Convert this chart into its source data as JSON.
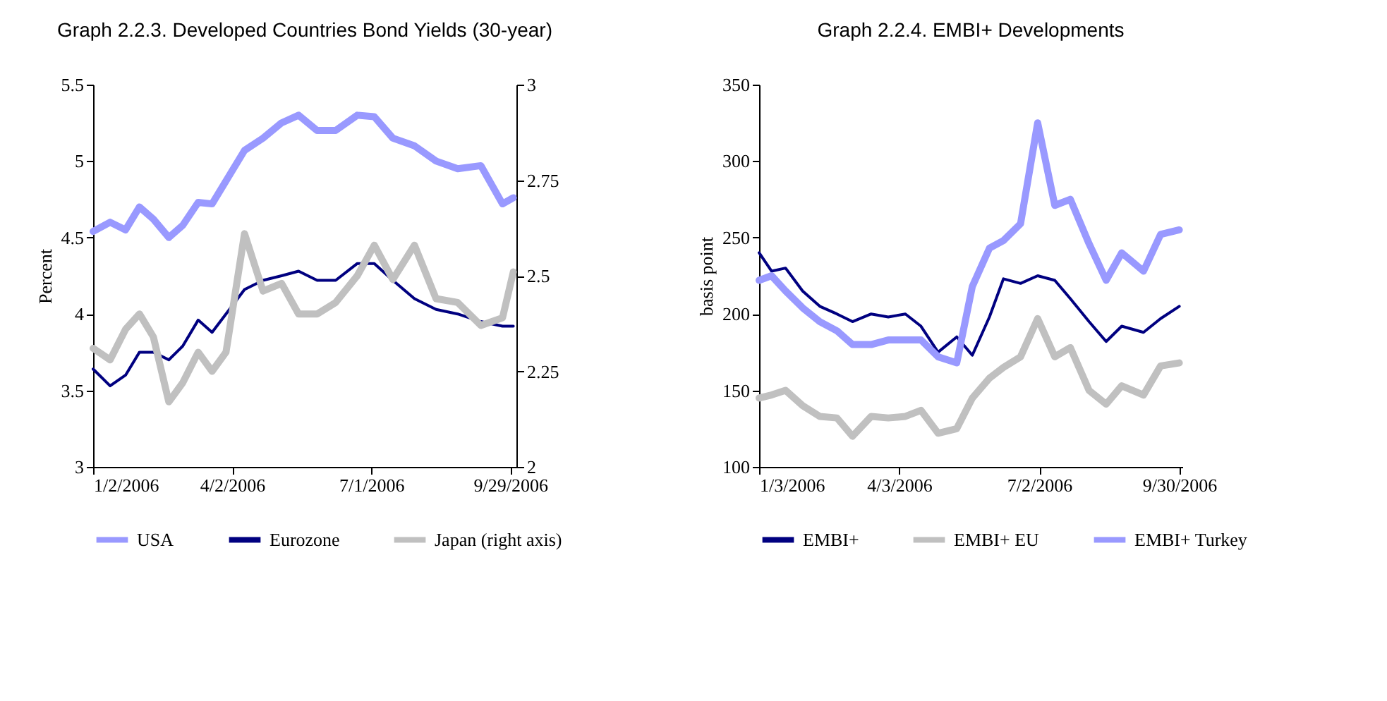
{
  "chart_data": [
    {
      "type": "line",
      "title": "Graph 2.2.3. Developed Countries Bond Yields (30-year)",
      "ylabel": "Percent",
      "legend": "bottom",
      "x": [
        "2006-01-02",
        "2006-01-13",
        "2006-01-23",
        "2006-02-01",
        "2006-02-10",
        "2006-02-20",
        "2006-03-01",
        "2006-03-11",
        "2006-03-20",
        "2006-03-29",
        "2006-04-10",
        "2006-04-22",
        "2006-05-04",
        "2006-05-15",
        "2006-05-27",
        "2006-06-08",
        "2006-06-22",
        "2006-07-03",
        "2006-07-15",
        "2006-07-29",
        "2006-08-12",
        "2006-08-26",
        "2006-09-10",
        "2006-09-24",
        "2006-10-01"
      ],
      "series": [
        {
          "name": "USA",
          "color": "#9999ff",
          "values": [
            4.54,
            4.6,
            4.55,
            4.7,
            4.62,
            4.5,
            4.58,
            4.73,
            4.72,
            4.87,
            5.07,
            5.15,
            5.25,
            5.3,
            5.2,
            5.2,
            5.3,
            5.29,
            5.15,
            5.1,
            5.0,
            4.95,
            4.97,
            4.72,
            4.76
          ]
        },
        {
          "name": "Eurozone",
          "color": "#000080",
          "values": [
            3.64,
            3.53,
            3.6,
            3.75,
            3.75,
            3.7,
            3.79,
            3.96,
            3.88,
            4.0,
            4.16,
            4.22,
            4.25,
            4.28,
            4.22,
            4.22,
            4.33,
            4.33,
            4.22,
            4.1,
            4.03,
            4.0,
            3.95,
            3.92,
            3.92
          ]
        },
        {
          "name": "Japan (right axis)",
          "color": "#c0c0c0",
          "axis": "y2",
          "values": [
            2.31,
            2.28,
            2.36,
            2.4,
            2.34,
            2.17,
            2.22,
            2.3,
            2.25,
            2.3,
            2.61,
            2.46,
            2.48,
            2.4,
            2.4,
            2.43,
            2.5,
            2.58,
            2.49,
            2.58,
            2.44,
            2.43,
            2.37,
            2.39,
            2.51
          ]
        }
      ],
      "xlim": [
        "2006-01-02",
        "2006-10-03"
      ],
      "xticks": [
        {
          "value": "2006-01-02",
          "label": "1/2/2006"
        },
        {
          "value": "2006-04-02",
          "label": "4/2/2006"
        },
        {
          "value": "2006-07-01",
          "label": "7/1/2006"
        },
        {
          "value": "2006-09-29",
          "label": "9/29/2006"
        }
      ],
      "ylim": [
        3,
        5.5
      ],
      "yticks": [
        3,
        3.5,
        4,
        4.5,
        5,
        5.5
      ],
      "y2lim": [
        2,
        3
      ],
      "y2ticks": [
        2,
        2.25,
        2.5,
        2.75,
        3
      ]
    },
    {
      "type": "line",
      "title": "Graph 2.2.4. EMBI+ Developments",
      "ylabel": "basis point",
      "legend": "bottom",
      "x": [
        "2006-01-03",
        "2006-01-11",
        "2006-01-20",
        "2006-01-31",
        "2006-02-11",
        "2006-02-22",
        "2006-03-04",
        "2006-03-16",
        "2006-03-27",
        "2006-04-07",
        "2006-04-17",
        "2006-04-28",
        "2006-05-10",
        "2006-05-20",
        "2006-05-31",
        "2006-06-09",
        "2006-06-20",
        "2006-07-01",
        "2006-07-12",
        "2006-07-22",
        "2006-08-03",
        "2006-08-14",
        "2006-08-24",
        "2006-09-07",
        "2006-09-18",
        "2006-09-30"
      ],
      "series": [
        {
          "name": "EMBI+",
          "color": "#000080",
          "values": [
            240,
            228,
            230,
            215,
            205,
            200,
            195,
            200,
            198,
            200,
            192,
            175,
            185,
            173,
            198,
            223,
            220,
            225,
            222,
            210,
            195,
            182,
            192,
            188,
            197,
            205
          ]
        },
        {
          "name": "EMBI+ EU",
          "color": "#c0c0c0",
          "values": [
            145,
            147,
            150,
            140,
            133,
            132,
            120,
            133,
            132,
            133,
            137,
            122,
            125,
            145,
            158,
            165,
            172,
            197,
            172,
            178,
            150,
            141,
            153,
            147,
            166,
            168
          ]
        },
        {
          "name": "EMBI+ Turkey",
          "color": "#9999ff",
          "values": [
            222,
            225,
            215,
            204,
            195,
            189,
            180,
            180,
            183,
            183,
            183,
            172,
            168,
            218,
            243,
            248,
            259,
            325,
            271,
            275,
            246,
            222,
            240,
            228,
            252,
            255
          ]
        }
      ],
      "xlim": [
        "2006-01-03",
        "2006-10-02"
      ],
      "xticks": [
        {
          "value": "2006-01-03",
          "label": "1/3/2006"
        },
        {
          "value": "2006-04-03",
          "label": "4/3/2006"
        },
        {
          "value": "2006-07-02",
          "label": "7/2/2006"
        },
        {
          "value": "2006-09-30",
          "label": "9/30/2006"
        }
      ],
      "ylim": [
        100,
        350
      ],
      "yticks": [
        100,
        150,
        200,
        250,
        300,
        350
      ]
    }
  ]
}
